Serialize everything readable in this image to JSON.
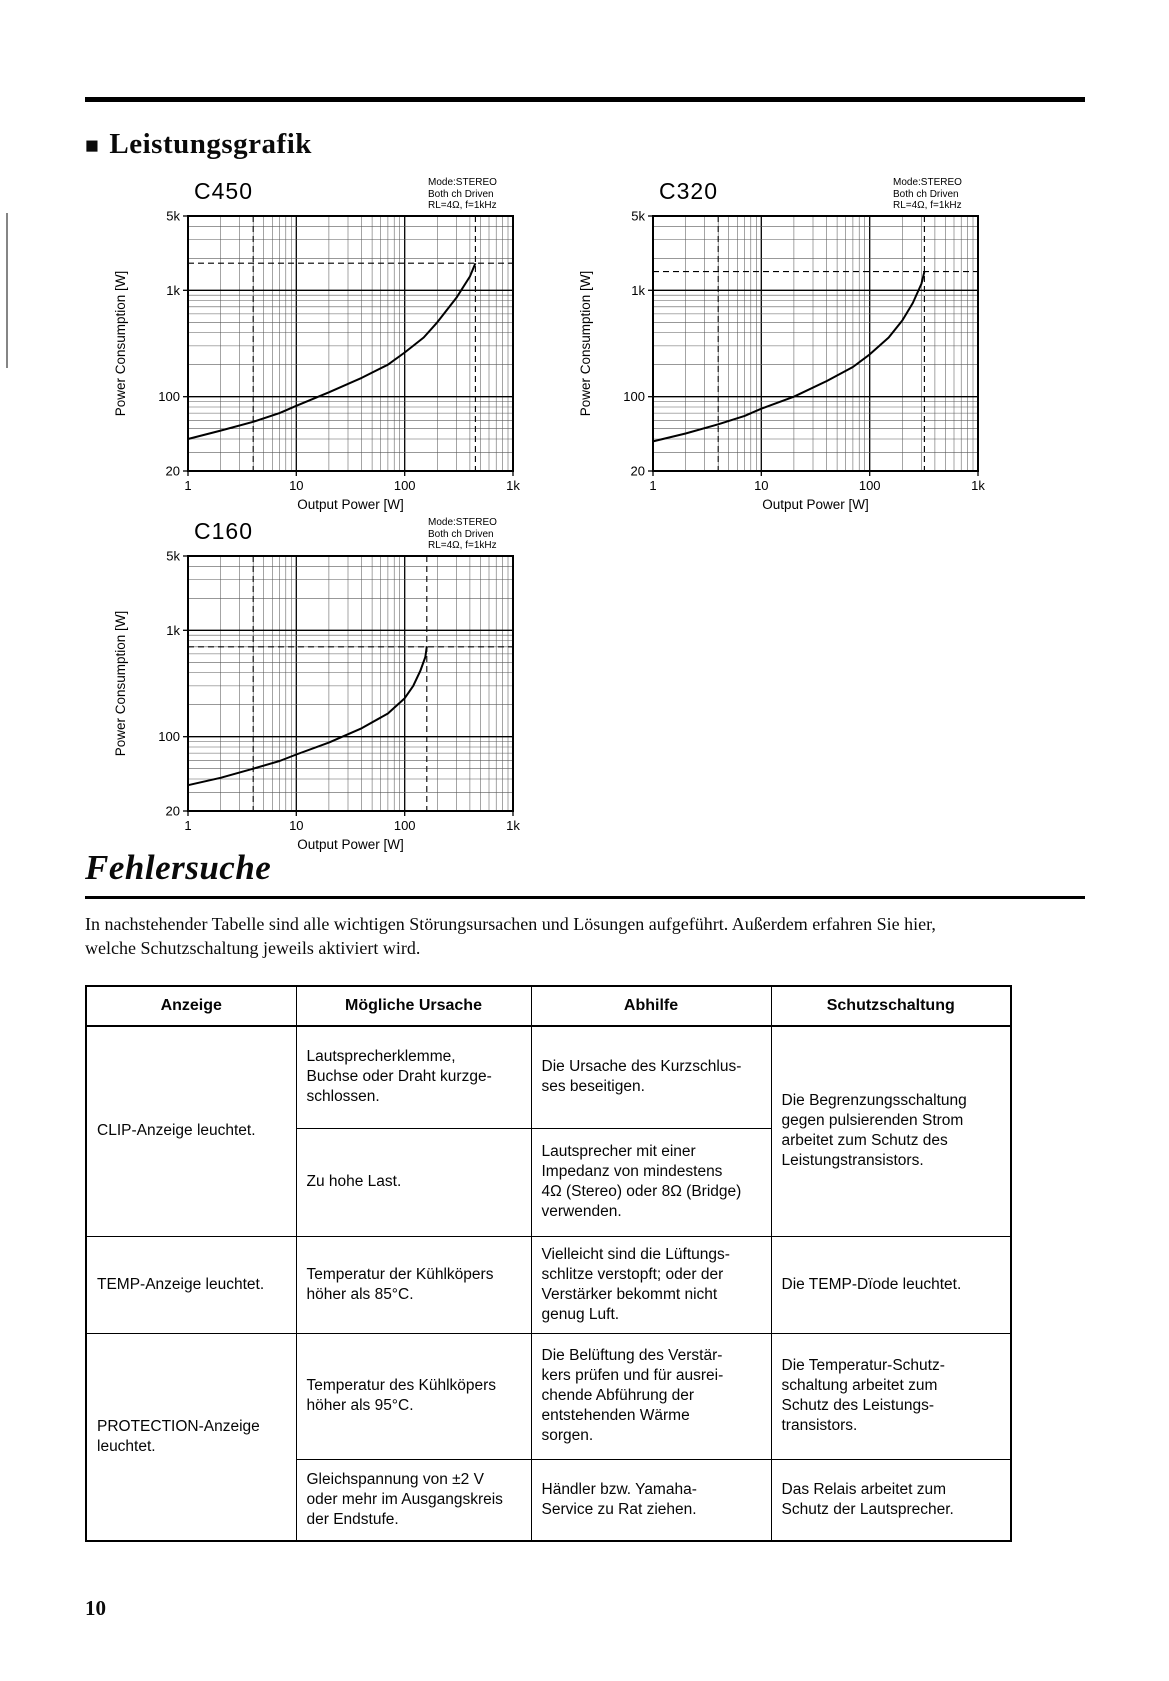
{
  "page": {
    "number": "10",
    "section_bullet": "■",
    "section_title": "Leistungsgrafik",
    "troubleshooting_title": "Fehlersuche",
    "intro": "In nachstehender Tabelle sind alle wichtigen Störungsursachen und Lösungen aufgeführt. Außerdem erfahren Sie hier,\nwelche Schutzschaltung jeweils aktiviert wird."
  },
  "chart_data": [
    {
      "type": "line",
      "title": "C450",
      "annotation": [
        "Mode:STEREO",
        "Both ch Driven",
        "RL=4Ω, f=1kHz"
      ],
      "xlabel": "Output Power [W]",
      "ylabel": "Power Consumption [W]",
      "xscale": "log",
      "yscale": "log",
      "xlim": [
        1,
        1000
      ],
      "ylim": [
        20,
        5000
      ],
      "xticks": [
        [
          1,
          "1"
        ],
        [
          10,
          "10"
        ],
        [
          100,
          "100"
        ],
        [
          1000,
          "1k"
        ]
      ],
      "yticks": [
        [
          20,
          "20"
        ],
        [
          100,
          "100"
        ],
        [
          1000,
          "1k"
        ],
        [
          5000,
          "5k"
        ]
      ],
      "grid": true,
      "dashed_v": [
        4,
        450
      ],
      "dashed_h": [
        1800
      ],
      "curve": [
        [
          1,
          40
        ],
        [
          2,
          48
        ],
        [
          4,
          58
        ],
        [
          7,
          70
        ],
        [
          10,
          82
        ],
        [
          20,
          110
        ],
        [
          40,
          150
        ],
        [
          70,
          200
        ],
        [
          100,
          260
        ],
        [
          150,
          360
        ],
        [
          200,
          500
        ],
        [
          300,
          850
        ],
        [
          400,
          1350
        ],
        [
          450,
          1800
        ]
      ]
    },
    {
      "type": "line",
      "title": "C320",
      "annotation": [
        "Mode:STEREO",
        "Both ch Driven",
        "RL=4Ω, f=1kHz"
      ],
      "xlabel": "Output Power [W]",
      "ylabel": "Power Consumption [W]",
      "xscale": "log",
      "yscale": "log",
      "xlim": [
        1,
        1000
      ],
      "ylim": [
        20,
        5000
      ],
      "xticks": [
        [
          1,
          "1"
        ],
        [
          10,
          "10"
        ],
        [
          100,
          "100"
        ],
        [
          1000,
          "1k"
        ]
      ],
      "yticks": [
        [
          20,
          "20"
        ],
        [
          100,
          "100"
        ],
        [
          1000,
          "1k"
        ],
        [
          5000,
          "5k"
        ]
      ],
      "grid": true,
      "dashed_v": [
        4,
        320
      ],
      "dashed_h": [
        1500
      ],
      "curve": [
        [
          1,
          38
        ],
        [
          2,
          45
        ],
        [
          4,
          55
        ],
        [
          7,
          66
        ],
        [
          10,
          77
        ],
        [
          20,
          100
        ],
        [
          40,
          140
        ],
        [
          70,
          190
        ],
        [
          100,
          250
        ],
        [
          150,
          360
        ],
        [
          200,
          520
        ],
        [
          250,
          760
        ],
        [
          300,
          1150
        ],
        [
          320,
          1500
        ]
      ]
    },
    {
      "type": "line",
      "title": "C160",
      "annotation": [
        "Mode:STEREO",
        "Both ch Driven",
        "RL=4Ω, f=1kHz"
      ],
      "xlabel": "Output Power [W]",
      "ylabel": "Power Consumption [W]",
      "xscale": "log",
      "yscale": "log",
      "xlim": [
        1,
        1000
      ],
      "ylim": [
        20,
        5000
      ],
      "xticks": [
        [
          1,
          "1"
        ],
        [
          10,
          "10"
        ],
        [
          100,
          "100"
        ],
        [
          1000,
          "1k"
        ]
      ],
      "yticks": [
        [
          20,
          "20"
        ],
        [
          100,
          "100"
        ],
        [
          1000,
          "1k"
        ],
        [
          5000,
          "5k"
        ]
      ],
      "grid": true,
      "dashed_v": [
        4,
        160
      ],
      "dashed_h": [
        700
      ],
      "curve": [
        [
          1,
          35
        ],
        [
          2,
          41
        ],
        [
          4,
          50
        ],
        [
          7,
          59
        ],
        [
          10,
          68
        ],
        [
          20,
          88
        ],
        [
          40,
          120
        ],
        [
          70,
          165
        ],
        [
          100,
          230
        ],
        [
          120,
          300
        ],
        [
          140,
          420
        ],
        [
          155,
          560
        ],
        [
          160,
          700
        ]
      ]
    }
  ],
  "table": {
    "headers": [
      "Anzeige",
      "Mögliche Ursache",
      "Abhilfe",
      "Schutzschaltung"
    ],
    "clip": {
      "anzeige": "CLIP-Anzeige leuchtet.",
      "ursache1": "Lautsprecherklemme,\nBuchse oder Draht kurzge-\nschlossen.",
      "abhilfe1": "Die Ursache des Kurzschlus-\nses beseitigen.",
      "ursache2": "Zu hohe Last.",
      "abhilfe2": "Lautsprecher mit einer\nImpedanz von mindestens\n4Ω (Stereo) oder 8Ω (Bridge)\nverwenden.",
      "schutz": "Die Begrenzungsschaltung\ngegen pulsierenden Strom\narbeitet zum Schutz des\nLeistungstransistors."
    },
    "temp": {
      "anzeige": "TEMP-Anzeige leuchtet.",
      "ursache": "Temperatur der Kühlköpers\nhöher als 85°C.",
      "abhilfe": "Vielleicht sind die Lüftungs-\nschlitze verstopft; oder der\nVerstärker bekommt nicht\ngenug Luft.",
      "schutz": "Die TEMP-Dïode leuchtet."
    },
    "protection": {
      "anzeige": "PROTECTION-Anzeige\nleuchtet.",
      "ursache1": "Temperatur des Kühlköpers\nhöher als 95°C.",
      "abhilfe1": "Die Belüftung des Verstär-\nkers prüfen und für ausrei-\nchende Abführung der\nentstehenden Wärme\nsorgen.",
      "schutz1": "Die Temperatur-Schutz-\nschaltung arbeitet zum\nSchutz des Leistungs-\ntransistors.",
      "ursache2": "Gleichspannung von ±2 V\noder mehr im Ausgangskreis\nder Endstufe.",
      "abhilfe2": "Händler bzw. Yamaha-\nService zu Rat ziehen.",
      "schutz2": "Das Relais arbeitet zum\nSchutz der Lautsprecher."
    }
  }
}
